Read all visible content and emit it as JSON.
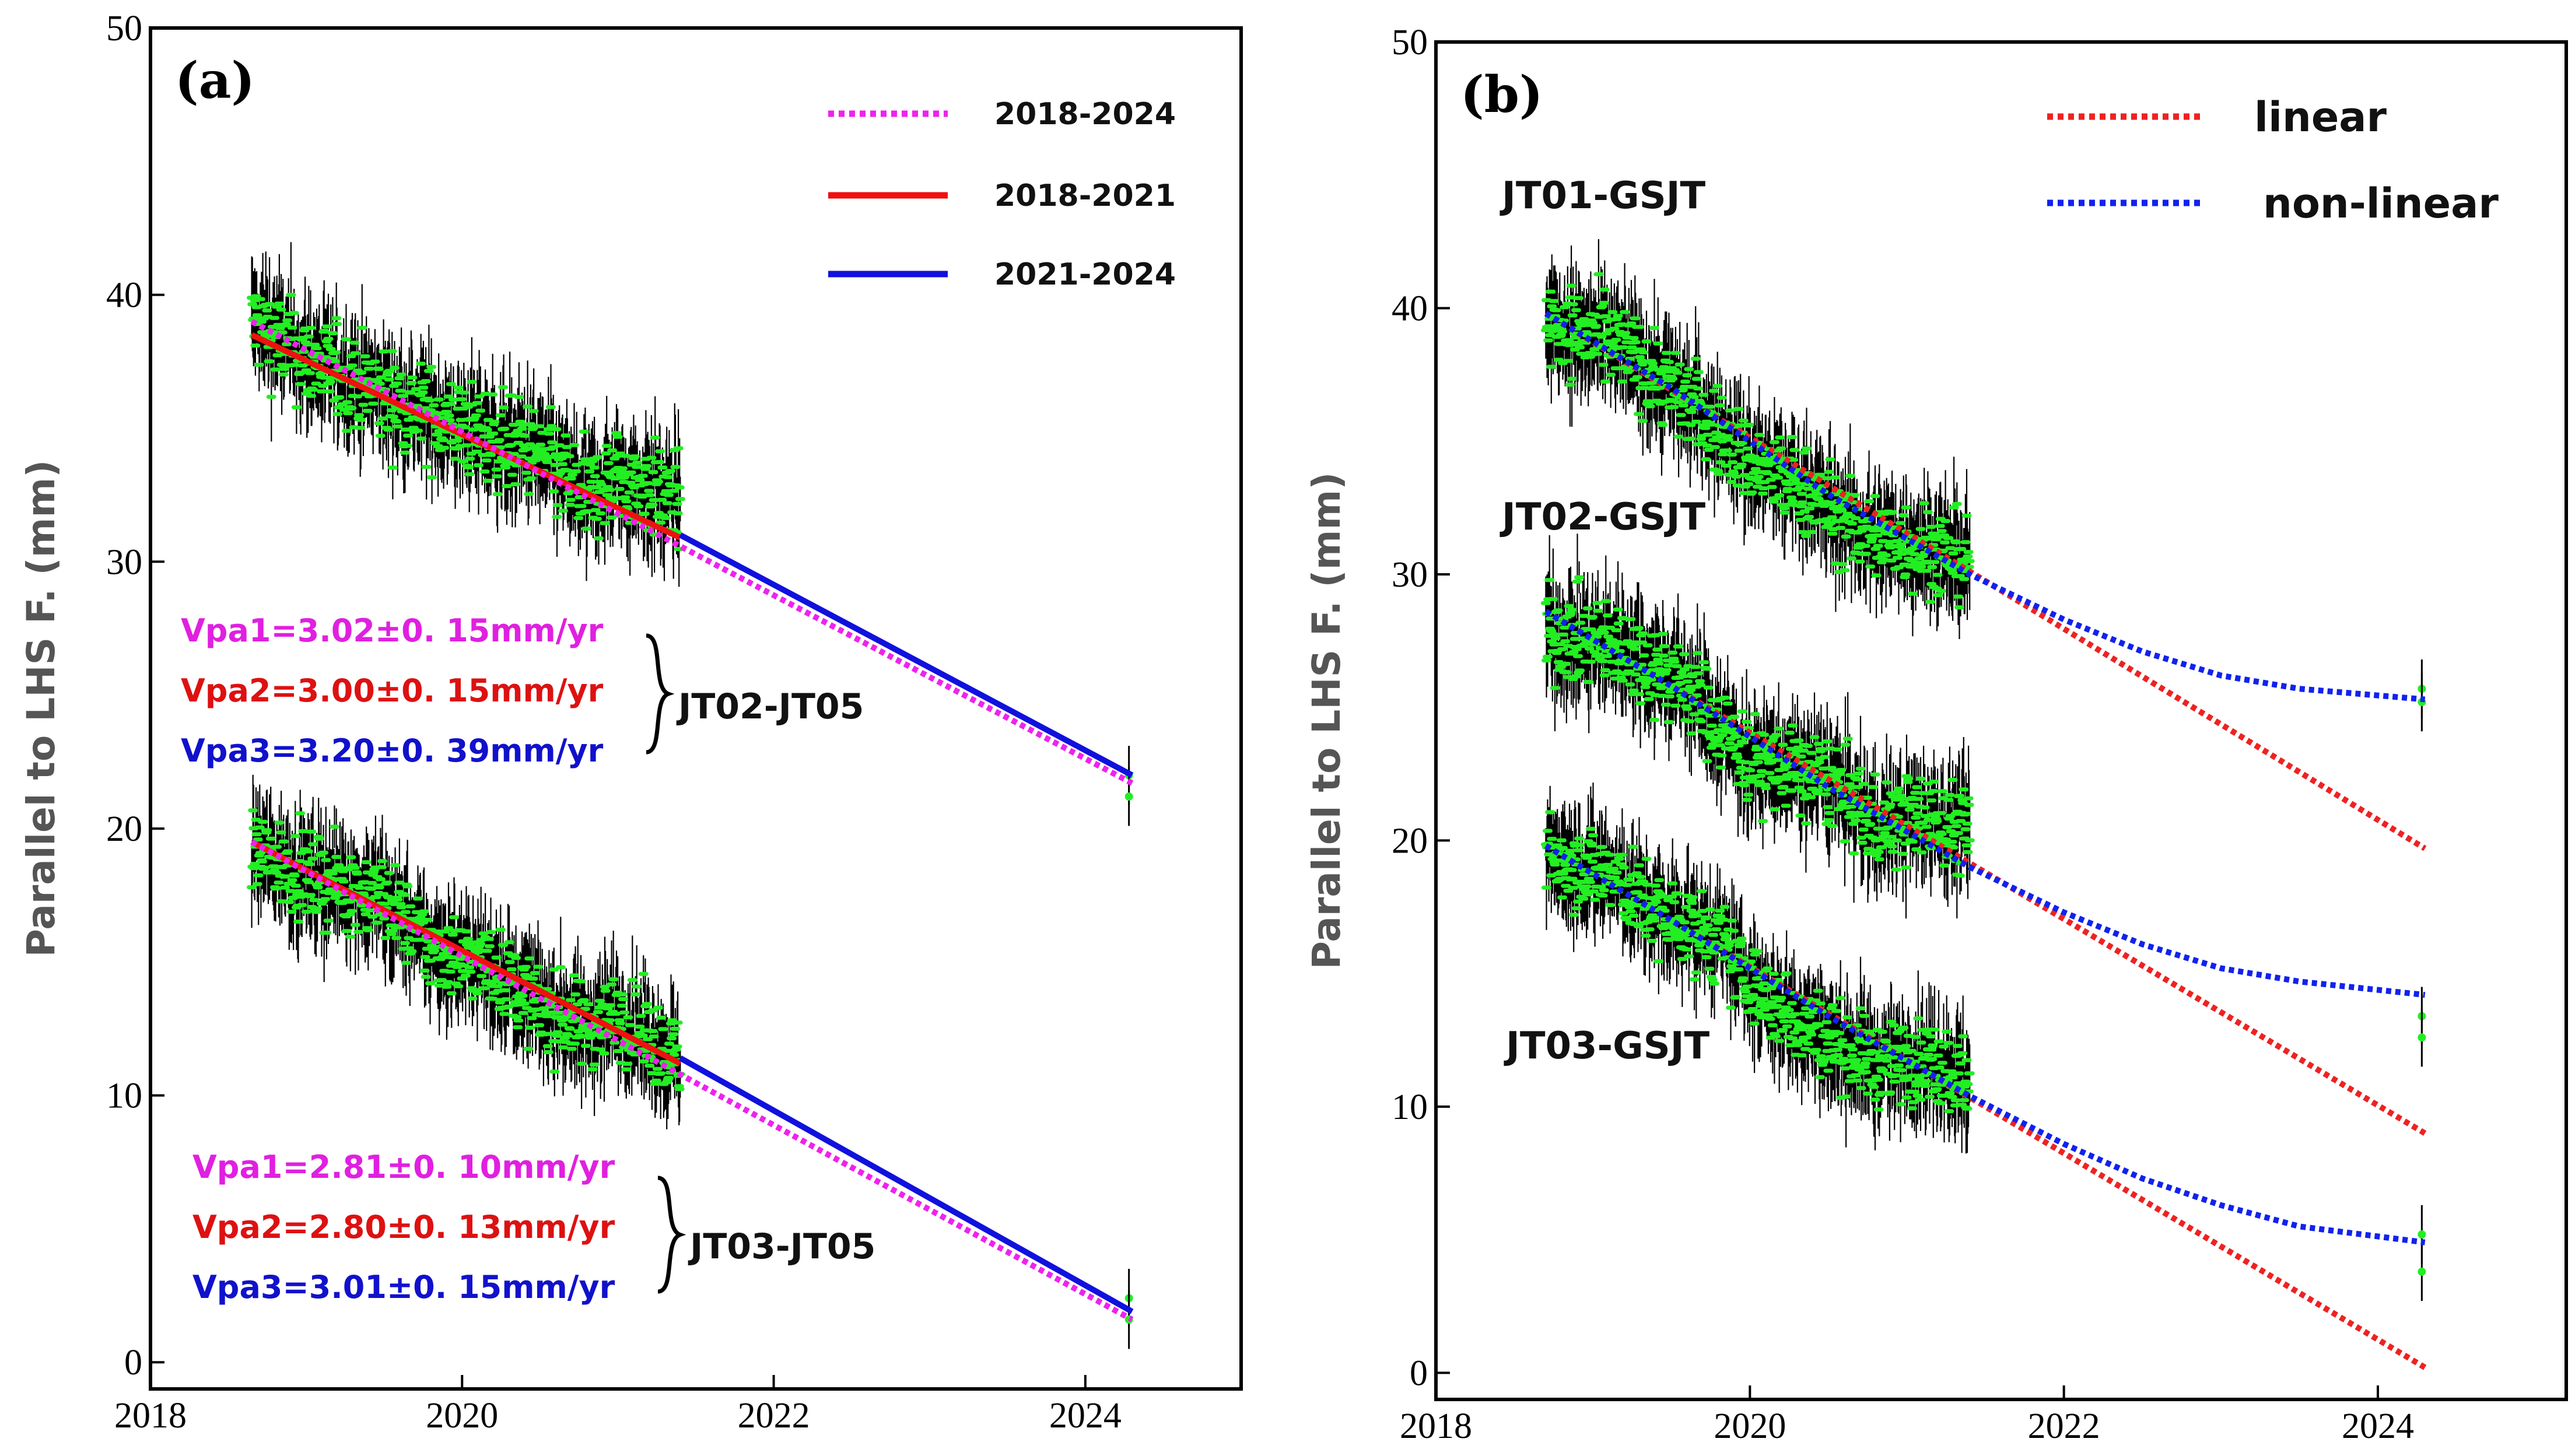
{
  "chart_data": [
    {
      "type": "line",
      "panel": "(a)",
      "ylabel": "Parallel to LHS F. (mm)",
      "xlabel": "",
      "xlim": [
        2018,
        2025
      ],
      "ylim": [
        -1,
        50
      ],
      "xticks": [
        2018,
        2020,
        2022,
        2024
      ],
      "yticks": [
        0,
        10,
        20,
        30,
        40,
        50
      ],
      "grid": false,
      "legend_position": "top-right",
      "legend": [
        {
          "label": "2018-2024",
          "color": "#ee22ee",
          "style": "dotted"
        },
        {
          "label": "2018-2021",
          "color": "#ee1111",
          "style": "solid"
        },
        {
          "label": "2021-2024",
          "color": "#1111dd",
          "style": "solid"
        }
      ],
      "series": [
        {
          "name": "2018-2024",
          "group": "JT02-JT05",
          "x": [
            2018.65,
            2024.3
          ],
          "y": [
            39.0,
            21.7
          ]
        },
        {
          "name": "2018-2021",
          "group": "JT02-JT05",
          "x": [
            2018.65,
            2021.4
          ],
          "y": [
            38.5,
            30.9
          ]
        },
        {
          "name": "2021-2024",
          "group": "JT02-JT05",
          "x": [
            2021.4,
            2024.3
          ],
          "y": [
            31.0,
            22.0
          ]
        },
        {
          "name": "2018-2024",
          "group": "JT03-JT05",
          "x": [
            2018.65,
            2024.3
          ],
          "y": [
            19.5,
            1.6
          ]
        },
        {
          "name": "2018-2021",
          "group": "JT03-JT05",
          "x": [
            2018.65,
            2021.4
          ],
          "y": [
            19.5,
            11.2
          ]
        },
        {
          "name": "2021-2024",
          "group": "JT03-JT05",
          "x": [
            2021.4,
            2024.3
          ],
          "y": [
            11.4,
            1.9
          ]
        }
      ],
      "observations": [
        {
          "group": "JT02-JT05",
          "x_start": 2018.65,
          "x_end": 2021.4,
          "spread": 1.6,
          "trend": [
            [
              2018.65,
              39.0
            ],
            [
              2019.0,
              37.6
            ],
            [
              2019.5,
              36.2
            ],
            [
              2020.0,
              35.0
            ],
            [
              2020.5,
              34.0
            ],
            [
              2020.8,
              32.4
            ],
            [
              2021.0,
              33.2
            ],
            [
              2021.4,
              32.2
            ]
          ],
          "extra_points": [
            {
              "x": 2024.28,
              "y": 22.0
            },
            {
              "x": 2024.28,
              "y": 21.2
            }
          ]
        },
        {
          "group": "JT03-JT05",
          "x_start": 2018.65,
          "x_end": 2021.4,
          "spread": 1.4,
          "trend": [
            [
              2018.65,
              19.2
            ],
            [
              2019.0,
              18.2
            ],
            [
              2019.5,
              17.4
            ],
            [
              2019.8,
              15.5
            ],
            [
              2020.2,
              14.8
            ],
            [
              2020.5,
              13.2
            ],
            [
              2020.8,
              12.6
            ],
            [
              2021.0,
              13.0
            ],
            [
              2021.4,
              11.3
            ]
          ],
          "extra_points": [
            {
              "x": 2024.28,
              "y": 2.4
            },
            {
              "x": 2024.28,
              "y": 1.6
            }
          ]
        }
      ],
      "annotations": [
        {
          "group": "JT02-JT05",
          "lines": [
            {
              "text": "Vpa1=3.02±0. 15mm/yr",
              "color": "#e020e0"
            },
            {
              "text": "Vpa2=3.00±0. 15mm/yr",
              "color": "#dd1111"
            },
            {
              "text": "Vpa3=3.20±0. 39mm/yr",
              "color": "#1111cc"
            }
          ]
        },
        {
          "group": "JT03-JT05",
          "lines": [
            {
              "text": "Vpa1=2.81±0. 10mm/yr",
              "color": "#e020e0"
            },
            {
              "text": "Vpa2=2.80±0. 13mm/yr",
              "color": "#dd1111"
            },
            {
              "text": "Vpa3=3.01±0. 15mm/yr",
              "color": "#1111cc"
            }
          ]
        }
      ]
    },
    {
      "type": "line",
      "panel": "(b)",
      "ylabel": "Parallel to LHS F. (mm)",
      "xlabel": "",
      "xlim": [
        2018,
        2025.2
      ],
      "ylim": [
        -1,
        50
      ],
      "xticks": [
        2018,
        2020,
        2022,
        2024
      ],
      "yticks": [
        0,
        10,
        20,
        30,
        40,
        50
      ],
      "grid": false,
      "legend_position": "top-right",
      "legend": [
        {
          "label": "linear",
          "color": "#ee2222",
          "style": "dotted"
        },
        {
          "label": "non-linear",
          "color": "#1122ee",
          "style": "dotted"
        }
      ],
      "series": [
        {
          "name": "linear",
          "group": "JT01-GSJT",
          "x": [
            2018.7,
            2024.3
          ],
          "y": [
            39.8,
            19.7
          ]
        },
        {
          "name": "non-linear",
          "group": "JT01-GSJT",
          "x": [
            2018.7,
            2019.5,
            2020.5,
            2021.4,
            2022.0,
            2022.5,
            2023.0,
            2023.5,
            2024.3
          ],
          "y": [
            39.8,
            37.0,
            33.0,
            30.0,
            28.3,
            27.1,
            26.2,
            25.7,
            25.3
          ]
        },
        {
          "name": "linear",
          "group": "JT02-GSJT",
          "x": [
            2018.7,
            2024.3
          ],
          "y": [
            28.6,
            9.0
          ]
        },
        {
          "name": "non-linear",
          "group": "JT02-GSJT",
          "x": [
            2018.7,
            2019.5,
            2020.5,
            2021.4,
            2022.0,
            2022.5,
            2023.0,
            2023.5,
            2024.3
          ],
          "y": [
            28.6,
            25.8,
            22.0,
            19.0,
            17.3,
            16.1,
            15.2,
            14.7,
            14.2
          ]
        },
        {
          "name": "linear",
          "group": "JT03-GSJT",
          "x": [
            2018.7,
            2024.3
          ],
          "y": [
            19.8,
            0.2
          ]
        },
        {
          "name": "non-linear",
          "group": "JT03-GSJT",
          "x": [
            2018.7,
            2019.5,
            2020.5,
            2021.4,
            2022.0,
            2022.5,
            2023.0,
            2023.5,
            2024.3
          ],
          "y": [
            19.8,
            17.0,
            13.4,
            10.4,
            8.6,
            7.3,
            6.3,
            5.5,
            4.9
          ]
        }
      ],
      "observations": [
        {
          "group": "JT01-GSJT",
          "x_start": 2018.7,
          "x_end": 2021.4,
          "spread": 1.5,
          "trend": [
            [
              2018.7,
              39.5
            ],
            [
              2019.2,
              38.4
            ],
            [
              2019.6,
              36.5
            ],
            [
              2020.0,
              34.2
            ],
            [
              2020.4,
              33.0
            ],
            [
              2020.7,
              31.5
            ],
            [
              2021.0,
              31.2
            ],
            [
              2021.4,
              30.5
            ]
          ],
          "extra_points": [
            {
              "x": 2024.28,
              "y": 25.7
            },
            {
              "x": 2024.28,
              "y": 25.2
            }
          ]
        },
        {
          "group": "JT02-GSJT",
          "x_start": 2018.7,
          "x_end": 2021.4,
          "spread": 1.5,
          "trend": [
            [
              2018.7,
              27.8
            ],
            [
              2019.2,
              27.2
            ],
            [
              2019.6,
              25.8
            ],
            [
              2020.0,
              23.0
            ],
            [
              2020.5,
              22.3
            ],
            [
              2020.8,
              20.6
            ],
            [
              2021.1,
              20.9
            ],
            [
              2021.4,
              20.3
            ]
          ],
          "extra_points": [
            {
              "x": 2024.28,
              "y": 13.4
            },
            {
              "x": 2024.28,
              "y": 12.6
            }
          ]
        },
        {
          "group": "JT03-GSJT",
          "x_start": 2018.7,
          "x_end": 2021.4,
          "spread": 1.4,
          "trend": [
            [
              2018.7,
              19.5
            ],
            [
              2019.1,
              18.7
            ],
            [
              2019.4,
              17.3
            ],
            [
              2019.8,
              16.2
            ],
            [
              2020.1,
              14.0
            ],
            [
              2020.5,
              12.6
            ],
            [
              2020.8,
              11.6
            ],
            [
              2021.1,
              11.8
            ],
            [
              2021.4,
              11.0
            ]
          ],
          "extra_points": [
            {
              "x": 2024.28,
              "y": 5.2
            },
            {
              "x": 2024.28,
              "y": 3.8
            }
          ]
        }
      ],
      "annotations": [
        {
          "group": "JT01-GSJT",
          "text": "JT01-GSJT"
        },
        {
          "group": "JT02-GSJT",
          "text": "JT02-GSJT"
        },
        {
          "group": "JT03-GSJT",
          "text": "JT03-GSJT"
        }
      ]
    }
  ]
}
